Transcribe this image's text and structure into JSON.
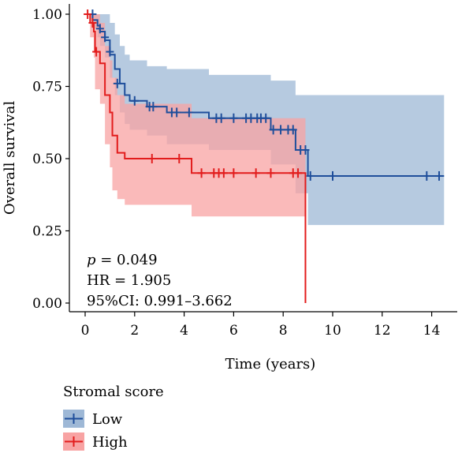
{
  "chart_data": {
    "type": "line",
    "subtype": "kaplan-meier",
    "xlabel": "Time (years)",
    "ylabel": "Overall survival",
    "xlim": [
      0,
      15
    ],
    "ylim": [
      0,
      1
    ],
    "x_ticks": [
      0,
      2,
      4,
      6,
      8,
      10,
      12,
      14
    ],
    "y_ticks": [
      "0.00",
      "0.25",
      "0.50",
      "0.75",
      "1.00"
    ],
    "grid": false,
    "legend": {
      "title": "Stromal score",
      "placement": "bottom-left",
      "entries": [
        "Low",
        "High"
      ]
    },
    "annotations": {
      "p_label": "p",
      "p_value": " = 0.049",
      "hr": "HR = 1.905",
      "ci": "95%CI: 0.991–3.662"
    },
    "series": [
      {
        "name": "Low",
        "color": "#1f4e9b",
        "band_color": "#9eb8d6",
        "steps": [
          [
            0,
            1.0
          ],
          [
            0.3,
            0.98
          ],
          [
            0.5,
            0.96
          ],
          [
            0.6,
            0.94
          ],
          [
            0.8,
            0.91
          ],
          [
            1.0,
            0.86
          ],
          [
            1.2,
            0.81
          ],
          [
            1.4,
            0.76
          ],
          [
            1.6,
            0.72
          ],
          [
            1.8,
            0.7
          ],
          [
            2.5,
            0.68
          ],
          [
            3.3,
            0.66
          ],
          [
            5.0,
            0.64
          ],
          [
            7.5,
            0.6
          ],
          [
            8.5,
            0.53
          ],
          [
            9.0,
            0.44
          ],
          [
            14.5,
            0.44
          ]
        ],
        "ci_upper": [
          [
            0,
            1.0
          ],
          [
            0.3,
            1.0
          ],
          [
            0.5,
            1.0
          ],
          [
            1.0,
            0.97
          ],
          [
            1.2,
            0.93
          ],
          [
            1.4,
            0.89
          ],
          [
            1.6,
            0.86
          ],
          [
            1.8,
            0.84
          ],
          [
            2.5,
            0.82
          ],
          [
            3.3,
            0.81
          ],
          [
            5.0,
            0.79
          ],
          [
            7.5,
            0.77
          ],
          [
            8.5,
            0.72
          ],
          [
            9.0,
            0.72
          ],
          [
            14.5,
            0.72
          ]
        ],
        "ci_lower": [
          [
            0,
            1.0
          ],
          [
            0.3,
            0.95
          ],
          [
            0.5,
            0.92
          ],
          [
            0.6,
            0.89
          ],
          [
            0.8,
            0.85
          ],
          [
            1.0,
            0.78
          ],
          [
            1.2,
            0.72
          ],
          [
            1.4,
            0.66
          ],
          [
            1.6,
            0.62
          ],
          [
            1.8,
            0.6
          ],
          [
            2.5,
            0.58
          ],
          [
            3.3,
            0.55
          ],
          [
            5.0,
            0.53
          ],
          [
            7.5,
            0.48
          ],
          [
            8.5,
            0.38
          ],
          [
            9.0,
            0.27
          ],
          [
            14.5,
            0.27
          ]
        ],
        "censors": [
          [
            0.3,
            1.0
          ],
          [
            0.6,
            0.95
          ],
          [
            0.8,
            0.92
          ],
          [
            1.0,
            0.87
          ],
          [
            1.3,
            0.76
          ],
          [
            2.0,
            0.7
          ],
          [
            2.6,
            0.68
          ],
          [
            2.75,
            0.68
          ],
          [
            3.5,
            0.66
          ],
          [
            3.7,
            0.66
          ],
          [
            4.2,
            0.66
          ],
          [
            5.3,
            0.64
          ],
          [
            5.5,
            0.64
          ],
          [
            6.0,
            0.64
          ],
          [
            6.5,
            0.64
          ],
          [
            6.7,
            0.64
          ],
          [
            6.95,
            0.64
          ],
          [
            7.1,
            0.64
          ],
          [
            7.3,
            0.64
          ],
          [
            7.6,
            0.6
          ],
          [
            7.9,
            0.6
          ],
          [
            8.2,
            0.6
          ],
          [
            8.4,
            0.6
          ],
          [
            8.7,
            0.53
          ],
          [
            8.9,
            0.53
          ],
          [
            9.1,
            0.44
          ],
          [
            10.0,
            0.44
          ],
          [
            13.8,
            0.44
          ],
          [
            14.3,
            0.44
          ]
        ]
      },
      {
        "name": "High",
        "color": "#e21d1d",
        "band_color": "#f8a3a3",
        "steps": [
          [
            0,
            1.0
          ],
          [
            0.2,
            0.97
          ],
          [
            0.35,
            0.94
          ],
          [
            0.4,
            0.87
          ],
          [
            0.6,
            0.83
          ],
          [
            0.8,
            0.72
          ],
          [
            1.0,
            0.66
          ],
          [
            1.1,
            0.58
          ],
          [
            1.3,
            0.52
          ],
          [
            1.6,
            0.5
          ],
          [
            4.3,
            0.45
          ],
          [
            8.9,
            0.0
          ]
        ],
        "ci_upper": [
          [
            0,
            1.0
          ],
          [
            0.4,
            1.0
          ],
          [
            0.6,
            0.97
          ],
          [
            0.8,
            0.89
          ],
          [
            1.0,
            0.84
          ],
          [
            1.1,
            0.78
          ],
          [
            1.3,
            0.72
          ],
          [
            1.6,
            0.69
          ],
          [
            4.3,
            0.64
          ],
          [
            8.9,
            0.64
          ]
        ],
        "ci_lower": [
          [
            0,
            1.0
          ],
          [
            0.2,
            0.92
          ],
          [
            0.35,
            0.85
          ],
          [
            0.4,
            0.74
          ],
          [
            0.6,
            0.69
          ],
          [
            0.8,
            0.55
          ],
          [
            1.0,
            0.47
          ],
          [
            1.1,
            0.39
          ],
          [
            1.3,
            0.36
          ],
          [
            1.6,
            0.34
          ],
          [
            4.3,
            0.3
          ],
          [
            8.9,
            0.3
          ]
        ],
        "censors": [
          [
            0.1,
            1.0
          ],
          [
            0.3,
            0.97
          ],
          [
            0.45,
            0.87
          ],
          [
            2.7,
            0.5
          ],
          [
            3.8,
            0.5
          ],
          [
            4.7,
            0.45
          ],
          [
            5.2,
            0.45
          ],
          [
            5.4,
            0.45
          ],
          [
            5.6,
            0.45
          ],
          [
            6.0,
            0.45
          ],
          [
            6.9,
            0.45
          ],
          [
            7.5,
            0.45
          ],
          [
            8.4,
            0.45
          ],
          [
            8.6,
            0.45
          ]
        ]
      }
    ]
  }
}
